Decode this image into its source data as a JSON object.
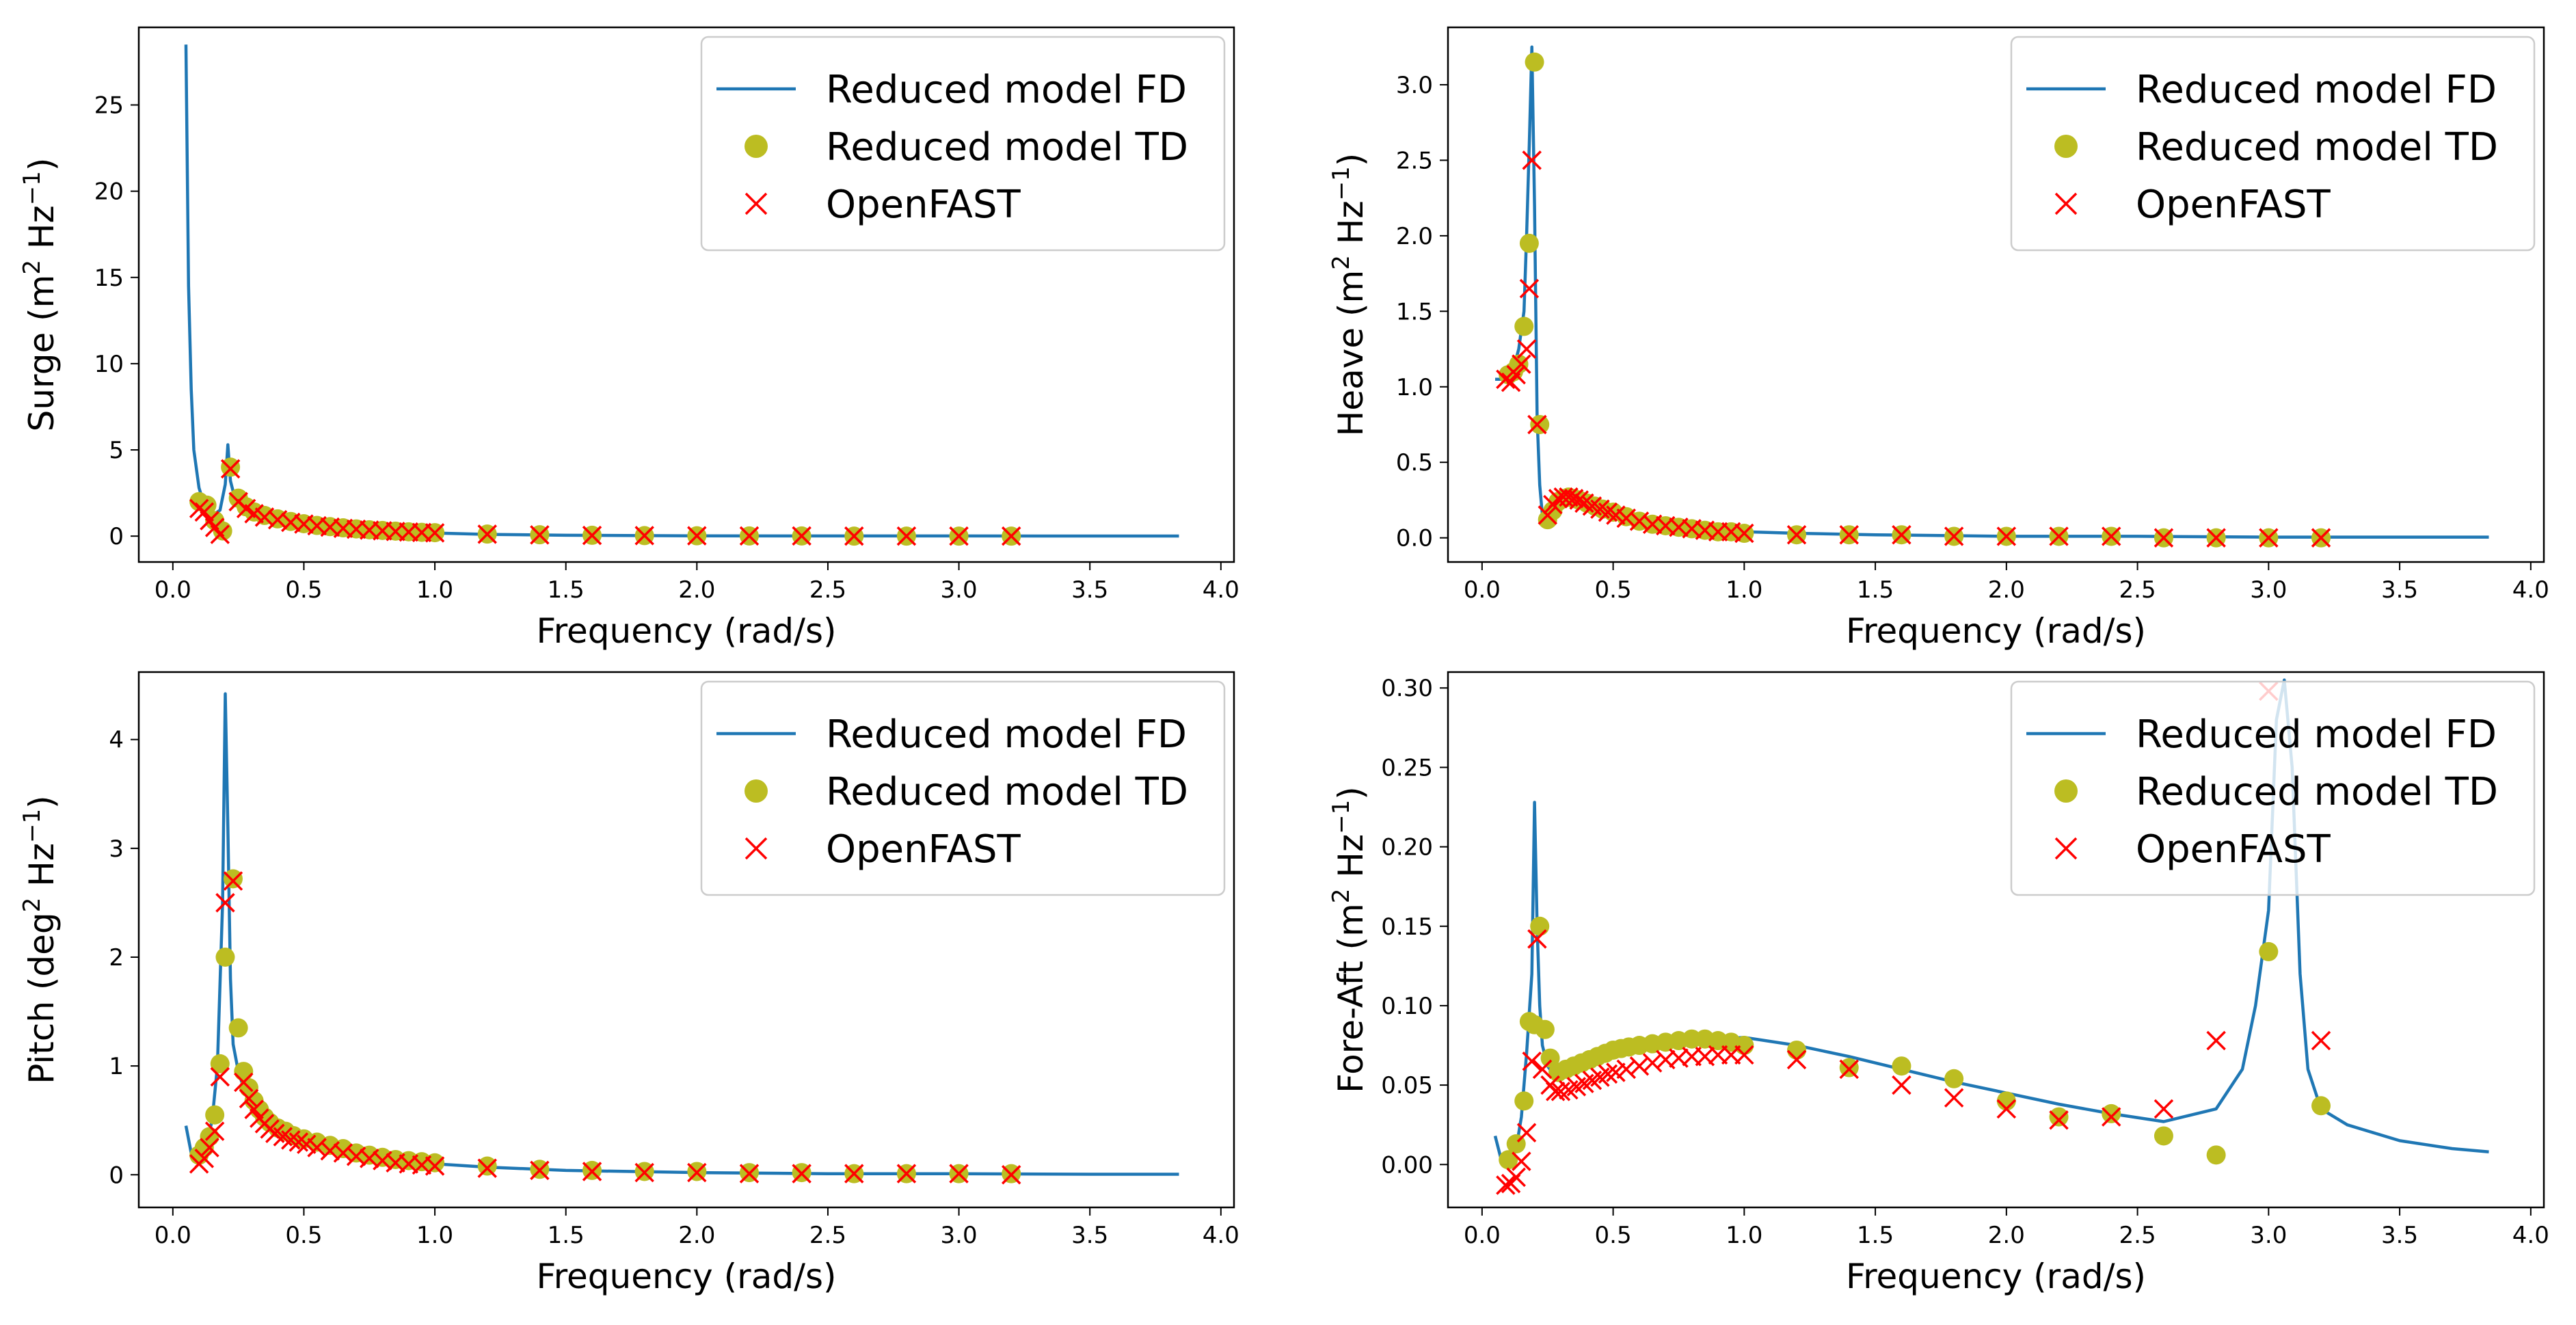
{
  "chart_data": [
    {
      "type": "line",
      "id": "surge",
      "ylabel_main": "Surge (m",
      "ylabel_sup": "2",
      "ylabel_unit": " Hz",
      "ylabel_sup2": "−1",
      "ylabel_end": ")",
      "xlabel": "Frequency (rad/s)",
      "xlim": [
        -0.13,
        4.05
      ],
      "ylim": [
        -1.5,
        29.5
      ],
      "xticks": [
        0.0,
        0.5,
        1.0,
        1.5,
        2.0,
        2.5,
        3.0,
        3.5,
        4.0
      ],
      "xtick_labels": [
        "0.0",
        "0.5",
        "1.0",
        "1.5",
        "2.0",
        "2.5",
        "3.0",
        "3.5",
        "4.0"
      ],
      "yticks": [
        0,
        5,
        10,
        15,
        20,
        25
      ],
      "ytick_labels": [
        "0",
        "5",
        "10",
        "15",
        "20",
        "25"
      ],
      "legend": [
        "Reduced model FD",
        "Reduced model TD",
        "OpenFAST"
      ],
      "fd_curve": {
        "x": [
          0.05,
          0.06,
          0.07,
          0.08,
          0.1,
          0.12,
          0.15,
          0.18,
          0.2,
          0.21,
          0.22,
          0.24,
          0.27,
          0.3,
          0.4,
          0.5,
          0.6,
          0.8,
          1.0,
          1.2,
          1.5,
          2.0,
          2.5,
          3.0,
          3.5,
          3.84
        ],
        "y": [
          28.5,
          14.5,
          8.5,
          5.0,
          2.8,
          1.8,
          1.2,
          1.5,
          3.0,
          5.3,
          3.2,
          2.0,
          1.6,
          1.3,
          0.95,
          0.7,
          0.5,
          0.3,
          0.18,
          0.1,
          0.05,
          0.02,
          0.01,
          0.01,
          0.005,
          0.005
        ]
      },
      "td_points": {
        "x": [
          0.1,
          0.13,
          0.16,
          0.19,
          0.22,
          0.25,
          0.28,
          0.31,
          0.35,
          0.4,
          0.45,
          0.5,
          0.55,
          0.6,
          0.65,
          0.7,
          0.75,
          0.8,
          0.85,
          0.9,
          0.95,
          1.0,
          1.2,
          1.4,
          1.6,
          1.8,
          2.0,
          2.2,
          2.4,
          2.6,
          2.8,
          3.0,
          3.2
        ],
        "y": [
          2.0,
          1.8,
          0.9,
          0.3,
          4.0,
          2.2,
          1.7,
          1.4,
          1.2,
          1.0,
          0.85,
          0.72,
          0.62,
          0.55,
          0.48,
          0.42,
          0.37,
          0.33,
          0.29,
          0.25,
          0.22,
          0.2,
          0.12,
          0.08,
          0.05,
          0.03,
          0.02,
          0.01,
          0.01,
          0.0,
          0.0,
          0.0,
          0.0
        ]
      },
      "openfast_points": {
        "x": [
          0.1,
          0.12,
          0.14,
          0.16,
          0.18,
          0.22,
          0.25,
          0.28,
          0.31,
          0.35,
          0.4,
          0.45,
          0.5,
          0.55,
          0.6,
          0.65,
          0.7,
          0.75,
          0.8,
          0.85,
          0.9,
          0.95,
          1.0,
          1.2,
          1.4,
          1.6,
          1.8,
          2.0,
          2.2,
          2.4,
          2.6,
          2.8,
          3.0,
          3.2
        ],
        "y": [
          1.6,
          1.4,
          0.9,
          0.5,
          0.1,
          3.9,
          2.0,
          1.6,
          1.3,
          1.1,
          0.95,
          0.8,
          0.7,
          0.6,
          0.52,
          0.45,
          0.4,
          0.35,
          0.31,
          0.27,
          0.24,
          0.21,
          0.19,
          0.11,
          0.07,
          0.04,
          0.03,
          0.02,
          0.01,
          0.01,
          0.0,
          0.0,
          0.0,
          0.0
        ]
      }
    },
    {
      "type": "line",
      "id": "heave",
      "ylabel_main": "Heave (m",
      "ylabel_sup": "2",
      "ylabel_unit": " Hz",
      "ylabel_sup2": "−1",
      "ylabel_end": ")",
      "xlabel": "Frequency (rad/s)",
      "xlim": [
        -0.13,
        4.05
      ],
      "ylim": [
        -0.16,
        3.38
      ],
      "xticks": [
        0.0,
        0.5,
        1.0,
        1.5,
        2.0,
        2.5,
        3.0,
        3.5,
        4.0
      ],
      "xtick_labels": [
        "0.0",
        "0.5",
        "1.0",
        "1.5",
        "2.0",
        "2.5",
        "3.0",
        "3.5",
        "4.0"
      ],
      "yticks": [
        0.0,
        0.5,
        1.0,
        1.5,
        2.0,
        2.5,
        3.0
      ],
      "ytick_labels": [
        "0.0",
        "0.5",
        "1.0",
        "1.5",
        "2.0",
        "2.5",
        "3.0"
      ],
      "legend": [
        "Reduced model FD",
        "Reduced model TD",
        "OpenFAST"
      ],
      "fd_curve": {
        "x": [
          0.05,
          0.08,
          0.1,
          0.12,
          0.14,
          0.16,
          0.17,
          0.18,
          0.19,
          0.2,
          0.21,
          0.22,
          0.23,
          0.25,
          0.28,
          0.32,
          0.36,
          0.4,
          0.5,
          0.6,
          0.8,
          1.0,
          1.2,
          1.5,
          2.0,
          2.5,
          3.0,
          3.5,
          3.84
        ],
        "y": [
          1.05,
          1.05,
          1.08,
          1.12,
          1.25,
          1.5,
          2.0,
          2.6,
          3.25,
          2.2,
          0.8,
          0.35,
          0.15,
          0.14,
          0.2,
          0.26,
          0.27,
          0.24,
          0.17,
          0.11,
          0.06,
          0.04,
          0.03,
          0.02,
          0.01,
          0.01,
          0.005,
          0.005,
          0.005
        ]
      },
      "td_points": {
        "x": [
          0.1,
          0.12,
          0.14,
          0.16,
          0.18,
          0.2,
          0.22,
          0.25,
          0.27,
          0.29,
          0.31,
          0.33,
          0.35,
          0.37,
          0.4,
          0.43,
          0.46,
          0.5,
          0.55,
          0.6,
          0.65,
          0.7,
          0.75,
          0.8,
          0.85,
          0.9,
          0.95,
          1.0,
          1.2,
          1.4,
          1.6,
          1.8,
          2.0,
          2.2,
          2.4,
          2.6,
          2.8,
          3.0,
          3.2
        ],
        "y": [
          1.08,
          1.1,
          1.15,
          1.4,
          1.95,
          3.15,
          0.75,
          0.12,
          0.18,
          0.24,
          0.26,
          0.27,
          0.26,
          0.25,
          0.23,
          0.21,
          0.19,
          0.17,
          0.14,
          0.11,
          0.09,
          0.08,
          0.07,
          0.06,
          0.05,
          0.04,
          0.04,
          0.03,
          0.02,
          0.02,
          0.02,
          0.01,
          0.01,
          0.01,
          0.01,
          0.0,
          0.0,
          0.0,
          0.0
        ]
      },
      "openfast_points": {
        "x": [
          0.09,
          0.11,
          0.13,
          0.15,
          0.17,
          0.18,
          0.19,
          0.21,
          0.25,
          0.27,
          0.29,
          0.31,
          0.33,
          0.35,
          0.37,
          0.39,
          0.42,
          0.45,
          0.48,
          0.51,
          0.55,
          0.6,
          0.65,
          0.7,
          0.75,
          0.8,
          0.85,
          0.9,
          0.95,
          1.0,
          1.2,
          1.4,
          1.6,
          1.8,
          2.0,
          2.2,
          2.4,
          2.6,
          2.8,
          3.0,
          3.2
        ],
        "y": [
          1.05,
          1.03,
          1.08,
          1.15,
          1.25,
          1.65,
          2.5,
          0.75,
          0.15,
          0.22,
          0.26,
          0.27,
          0.27,
          0.26,
          0.25,
          0.23,
          0.21,
          0.19,
          0.17,
          0.15,
          0.13,
          0.11,
          0.09,
          0.08,
          0.07,
          0.06,
          0.05,
          0.04,
          0.04,
          0.03,
          0.02,
          0.02,
          0.02,
          0.01,
          0.01,
          0.01,
          0.01,
          0.0,
          0.0,
          0.0,
          0.0
        ]
      }
    },
    {
      "type": "line",
      "id": "pitch",
      "ylabel_main": "Pitch (deg",
      "ylabel_sup": "2",
      "ylabel_unit": " Hz",
      "ylabel_sup2": "−1",
      "ylabel_end": ")",
      "xlabel": "Frequency (rad/s)",
      "xlim": [
        -0.13,
        4.05
      ],
      "ylim": [
        -0.3,
        4.62
      ],
      "xticks": [
        0.0,
        0.5,
        1.0,
        1.5,
        2.0,
        2.5,
        3.0,
        3.5,
        4.0
      ],
      "xtick_labels": [
        "0.0",
        "0.5",
        "1.0",
        "1.5",
        "2.0",
        "2.5",
        "3.0",
        "3.5",
        "4.0"
      ],
      "yticks": [
        0,
        1,
        2,
        3,
        4
      ],
      "ytick_labels": [
        "0",
        "1",
        "2",
        "3",
        "4"
      ],
      "legend": [
        "Reduced model FD",
        "Reduced model TD",
        "OpenFAST"
      ],
      "fd_curve": {
        "x": [
          0.05,
          0.07,
          0.09,
          0.11,
          0.13,
          0.15,
          0.17,
          0.19,
          0.2,
          0.21,
          0.22,
          0.23,
          0.25,
          0.27,
          0.3,
          0.35,
          0.4,
          0.5,
          0.6,
          0.8,
          1.0,
          1.2,
          1.5,
          2.0,
          2.5,
          3.0,
          3.5,
          3.84
        ],
        "y": [
          0.45,
          0.2,
          0.15,
          0.2,
          0.3,
          0.5,
          1.0,
          2.5,
          4.42,
          3.2,
          1.8,
          1.2,
          0.95,
          0.8,
          0.65,
          0.5,
          0.42,
          0.3,
          0.22,
          0.14,
          0.1,
          0.07,
          0.04,
          0.02,
          0.01,
          0.01,
          0.005,
          0.005
        ]
      },
      "td_points": {
        "x": [
          0.1,
          0.12,
          0.14,
          0.16,
          0.18,
          0.2,
          0.23,
          0.25,
          0.27,
          0.29,
          0.31,
          0.33,
          0.35,
          0.37,
          0.4,
          0.43,
          0.46,
          0.5,
          0.55,
          0.6,
          0.65,
          0.7,
          0.75,
          0.8,
          0.85,
          0.9,
          0.95,
          1.0,
          1.2,
          1.4,
          1.6,
          1.8,
          2.0,
          2.2,
          2.4,
          2.6,
          2.8,
          3.0,
          3.2
        ],
        "y": [
          0.18,
          0.25,
          0.35,
          0.55,
          1.02,
          2.0,
          2.72,
          1.35,
          0.95,
          0.8,
          0.68,
          0.6,
          0.53,
          0.48,
          0.43,
          0.4,
          0.36,
          0.33,
          0.3,
          0.27,
          0.24,
          0.2,
          0.18,
          0.16,
          0.14,
          0.13,
          0.12,
          0.11,
          0.08,
          0.05,
          0.04,
          0.03,
          0.03,
          0.02,
          0.02,
          0.01,
          0.01,
          0.01,
          0.01
        ]
      },
      "openfast_points": {
        "x": [
          0.1,
          0.12,
          0.14,
          0.16,
          0.18,
          0.2,
          0.23,
          0.27,
          0.29,
          0.31,
          0.33,
          0.35,
          0.37,
          0.39,
          0.42,
          0.45,
          0.48,
          0.51,
          0.55,
          0.6,
          0.65,
          0.7,
          0.75,
          0.8,
          0.85,
          0.9,
          0.95,
          1.0,
          1.2,
          1.4,
          1.6,
          1.8,
          2.0,
          2.2,
          2.4,
          2.6,
          2.8,
          3.0,
          3.2
        ],
        "y": [
          0.1,
          0.15,
          0.25,
          0.4,
          0.9,
          2.5,
          2.7,
          0.85,
          0.7,
          0.6,
          0.52,
          0.47,
          0.42,
          0.38,
          0.35,
          0.32,
          0.3,
          0.28,
          0.25,
          0.22,
          0.2,
          0.17,
          0.15,
          0.13,
          0.11,
          0.1,
          0.09,
          0.08,
          0.06,
          0.04,
          0.03,
          0.02,
          0.02,
          0.01,
          0.01,
          0.01,
          0.01,
          0.01,
          0.0
        ]
      }
    },
    {
      "type": "line",
      "id": "fore-aft",
      "ylabel_main": "Fore-Aft (m",
      "ylabel_sup": "2",
      "ylabel_unit": " Hz",
      "ylabel_sup2": "−1",
      "ylabel_end": ")",
      "xlabel": "Frequency (rad/s)",
      "xlim": [
        -0.13,
        4.05
      ],
      "ylim": [
        -0.027,
        0.31
      ],
      "xticks": [
        0.0,
        0.5,
        1.0,
        1.5,
        2.0,
        2.5,
        3.0,
        3.5,
        4.0
      ],
      "xtick_labels": [
        "0.0",
        "0.5",
        "1.0",
        "1.5",
        "2.0",
        "2.5",
        "3.0",
        "3.5",
        "4.0"
      ],
      "yticks": [
        0.0,
        0.05,
        0.1,
        0.15,
        0.2,
        0.25,
        0.3
      ],
      "ytick_labels": [
        "0.00",
        "0.05",
        "0.10",
        "0.15",
        "0.20",
        "0.25",
        "0.30"
      ],
      "legend": [
        "Reduced model FD",
        "Reduced model TD",
        "OpenFAST"
      ],
      "fd_curve": {
        "x": [
          0.05,
          0.07,
          0.09,
          0.11,
          0.13,
          0.15,
          0.17,
          0.19,
          0.2,
          0.21,
          0.22,
          0.23,
          0.25,
          0.28,
          0.3,
          0.35,
          0.4,
          0.5,
          0.6,
          0.8,
          1.0,
          1.2,
          1.4,
          1.6,
          1.8,
          2.0,
          2.2,
          2.4,
          2.6,
          2.8,
          2.9,
          2.95,
          3.0,
          3.03,
          3.06,
          3.09,
          3.12,
          3.15,
          3.2,
          3.3,
          3.5,
          3.7,
          3.84
        ],
        "y": [
          0.018,
          0.005,
          0.0,
          0.003,
          0.01,
          0.03,
          0.07,
          0.12,
          0.228,
          0.15,
          0.1,
          0.075,
          0.062,
          0.055,
          0.055,
          0.058,
          0.062,
          0.068,
          0.072,
          0.078,
          0.08,
          0.075,
          0.068,
          0.06,
          0.052,
          0.045,
          0.038,
          0.032,
          0.027,
          0.035,
          0.06,
          0.1,
          0.16,
          0.28,
          0.305,
          0.25,
          0.12,
          0.06,
          0.035,
          0.025,
          0.015,
          0.01,
          0.008
        ]
      },
      "td_points": {
        "x": [
          0.1,
          0.13,
          0.16,
          0.18,
          0.2,
          0.22,
          0.24,
          0.26,
          0.29,
          0.32,
          0.35,
          0.38,
          0.41,
          0.44,
          0.47,
          0.5,
          0.53,
          0.56,
          0.6,
          0.65,
          0.7,
          0.75,
          0.8,
          0.85,
          0.9,
          0.95,
          1.0,
          1.2,
          1.4,
          1.6,
          1.8,
          2.0,
          2.2,
          2.4,
          2.6,
          2.8,
          3.0,
          3.2
        ],
        "y": [
          0.003,
          0.013,
          0.04,
          0.09,
          0.088,
          0.15,
          0.085,
          0.067,
          0.058,
          0.06,
          0.062,
          0.064,
          0.066,
          0.068,
          0.07,
          0.072,
          0.073,
          0.074,
          0.075,
          0.076,
          0.077,
          0.078,
          0.079,
          0.079,
          0.078,
          0.077,
          0.075,
          0.072,
          0.061,
          0.062,
          0.054,
          0.04,
          0.03,
          0.032,
          0.018,
          0.006,
          0.134,
          0.037
        ]
      },
      "openfast_points": {
        "x": [
          0.09,
          0.11,
          0.13,
          0.15,
          0.17,
          0.19,
          0.21,
          0.23,
          0.26,
          0.28,
          0.3,
          0.33,
          0.36,
          0.39,
          0.42,
          0.45,
          0.48,
          0.51,
          0.55,
          0.6,
          0.65,
          0.7,
          0.75,
          0.8,
          0.85,
          0.9,
          0.95,
          1.0,
          1.2,
          1.4,
          1.6,
          1.8,
          2.0,
          2.2,
          2.4,
          2.6,
          2.8,
          3.0,
          3.2
        ],
        "y": [
          -0.013,
          -0.012,
          -0.008,
          0.002,
          0.02,
          0.065,
          0.142,
          0.06,
          0.05,
          0.046,
          0.046,
          0.047,
          0.049,
          0.051,
          0.053,
          0.055,
          0.057,
          0.058,
          0.06,
          0.062,
          0.064,
          0.066,
          0.067,
          0.068,
          0.068,
          0.069,
          0.069,
          0.069,
          0.066,
          0.06,
          0.05,
          0.042,
          0.035,
          0.028,
          0.03,
          0.035,
          0.078,
          0.298,
          0.078
        ]
      }
    }
  ]
}
